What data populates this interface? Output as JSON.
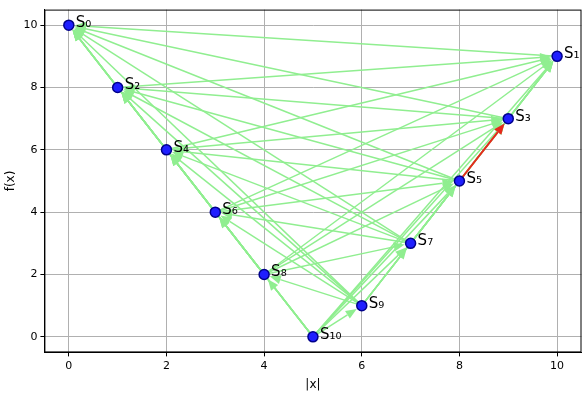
{
  "chart_data": {
    "type": "scatter",
    "x_label": "|x|",
    "y_label": "f(x)",
    "x": [
      0,
      10,
      1,
      9,
      2,
      8,
      3,
      7,
      4,
      6,
      5
    ],
    "values": [
      10,
      9,
      8,
      7,
      6,
      5,
      4,
      3,
      2,
      1,
      0
    ],
    "point_labels": [
      "S₀",
      "S₁",
      "S₂",
      "S₃",
      "S₄",
      "S₅",
      "S₆",
      "S₇",
      "S₈",
      "S₉",
      "S₁₀"
    ],
    "color": "#1f1fff",
    "marker": "circle",
    "arrows": [
      [
        1,
        0
      ],
      [
        2,
        0
      ],
      [
        2,
        1
      ],
      [
        3,
        0
      ],
      [
        3,
        1
      ],
      [
        3,
        2
      ],
      [
        4,
        0
      ],
      [
        4,
        1
      ],
      [
        4,
        2
      ],
      [
        4,
        3
      ],
      [
        5,
        0
      ],
      [
        5,
        1
      ],
      [
        5,
        2
      ],
      [
        5,
        4
      ],
      [
        6,
        0
      ],
      [
        6,
        1
      ],
      [
        6,
        2
      ],
      [
        6,
        3
      ],
      [
        6,
        4
      ],
      [
        6,
        5
      ],
      [
        7,
        0
      ],
      [
        7,
        1
      ],
      [
        7,
        2
      ],
      [
        7,
        3
      ],
      [
        7,
        4
      ],
      [
        7,
        5
      ],
      [
        7,
        6
      ],
      [
        8,
        0
      ],
      [
        8,
        1
      ],
      [
        8,
        2
      ],
      [
        8,
        3
      ],
      [
        8,
        4
      ],
      [
        8,
        5
      ],
      [
        8,
        6
      ],
      [
        8,
        7
      ],
      [
        9,
        0
      ],
      [
        9,
        1
      ],
      [
        9,
        2
      ],
      [
        9,
        3
      ],
      [
        9,
        4
      ],
      [
        9,
        5
      ],
      [
        9,
        6
      ],
      [
        9,
        7
      ],
      [
        9,
        8
      ],
      [
        10,
        0
      ],
      [
        10,
        1
      ],
      [
        10,
        2
      ],
      [
        10,
        3
      ],
      [
        10,
        4
      ],
      [
        10,
        5
      ],
      [
        10,
        6
      ],
      [
        10,
        7
      ],
      [
        10,
        8
      ],
      [
        10,
        9
      ]
    ],
    "arrow_color": "#90ee90",
    "highlight": [
      5,
      3
    ],
    "highlight_color": "#e8281c",
    "xlim": [
      -0.5,
      10.5
    ],
    "ylim": [
      -0.5,
      10.5
    ],
    "xticks": [
      0,
      2,
      4,
      6,
      8,
      10
    ],
    "yticks": [
      0,
      2,
      4,
      6,
      8,
      10
    ],
    "grid": true
  }
}
